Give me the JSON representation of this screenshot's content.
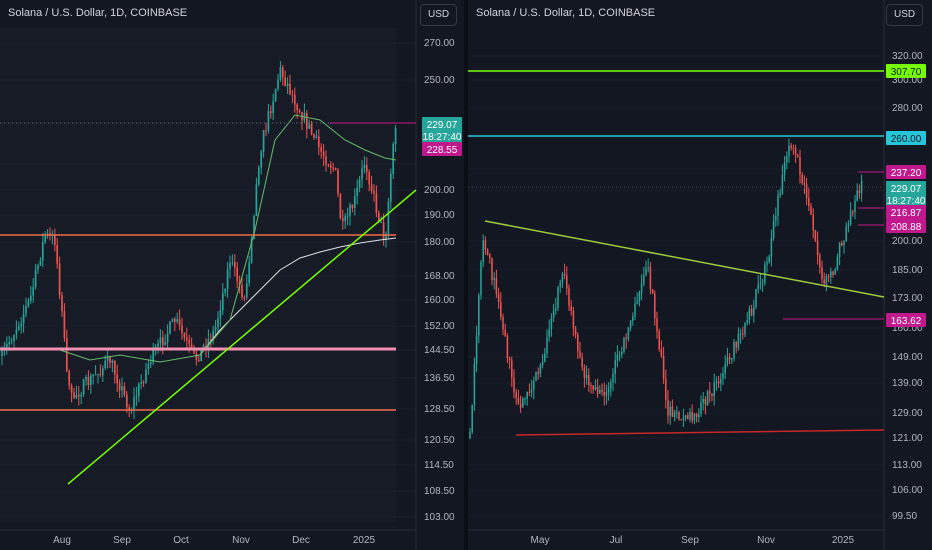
{
  "left": {
    "symbol": "Solana / U.S. Dollar, 1D, COINBASE",
    "currency": "USD",
    "y_ticks": [
      "270.00",
      "250.00",
      "229.07",
      "210.00",
      "200.00",
      "190.00",
      "180.00",
      "168.00",
      "160.00",
      "152.00",
      "144.50",
      "136.50",
      "128.50",
      "120.50",
      "114.50",
      "108.50",
      "103.00"
    ],
    "x_ticks": [
      "Aug",
      "Sep",
      "Oct",
      "Nov",
      "Dec",
      "2025"
    ],
    "labels": [
      {
        "text": "229.07",
        "text2": "18:27:40",
        "color": "#26a69a"
      },
      {
        "text": "228.55",
        "color": "#c2188e"
      }
    ]
  },
  "right": {
    "symbol": "Solana / U.S. Dollar, 1D, COINBASE",
    "currency": "USD",
    "y_ticks": [
      "320.00",
      "300.00",
      "280.00",
      "260.00",
      "240.00",
      "220.00",
      "200.00",
      "185.00",
      "173.00",
      "160.00",
      "149.00",
      "139.00",
      "129.00",
      "121.00",
      "113.00",
      "106.00",
      "99.50"
    ],
    "x_ticks": [
      "May",
      "Jul",
      "Sep",
      "Nov",
      "2025"
    ],
    "labels": [
      {
        "text": "307.70",
        "color": "#76ff03"
      },
      {
        "text": "260.00",
        "color": "#26c6da"
      },
      {
        "text": "237.20",
        "color": "#c2188e"
      },
      {
        "text": "229.07",
        "text2": "18:27:40",
        "color": "#26a69a"
      },
      {
        "text": "216.87",
        "color": "#c2188e"
      },
      {
        "text": "208.88",
        "color": "#c2188e"
      },
      {
        "text": "163.62",
        "color": "#c2188e"
      }
    ]
  },
  "chart_data": [
    {
      "type": "candlestick",
      "title": "Solana / U.S. Dollar, 1D, COINBASE",
      "ylabel": "USD",
      "ylim": [
        103,
        270
      ],
      "x_range": [
        "2024-07",
        "2025-01"
      ],
      "last_price": 229.07,
      "countdown": "18:27:40",
      "price_labels": [
        229.07,
        228.55
      ],
      "close_path": [
        {
          "x": "2024-07",
          "y": 152
        },
        {
          "x": "2024-07-25",
          "y": 183
        },
        {
          "x": "2024-08-05",
          "y": 128
        },
        {
          "x": "2024-08-20",
          "y": 145
        },
        {
          "x": "2024-09-07",
          "y": 128
        },
        {
          "x": "2024-09-25",
          "y": 152
        },
        {
          "x": "2024-10-10",
          "y": 143
        },
        {
          "x": "2024-10-28",
          "y": 175
        },
        {
          "x": "2024-11-22",
          "y": 255
        },
        {
          "x": "2024-12-10",
          "y": 225
        },
        {
          "x": "2024-12-28",
          "y": 188
        },
        {
          "x": "2025-01-06",
          "y": 218
        },
        {
          "x": "2025-01-13",
          "y": 182
        },
        {
          "x": "2025-01-19",
          "y": 229
        }
      ],
      "horizontal_levels": [
        182,
        145,
        128
      ],
      "trendline": [
        {
          "x": "2024-08-05",
          "y": 110
        },
        {
          "x": "2025-01-20",
          "y": 192
        }
      ]
    },
    {
      "type": "candlestick",
      "title": "Solana / U.S. Dollar, 1D, COINBASE",
      "ylabel": "USD",
      "ylim": [
        99.5,
        320
      ],
      "x_range": [
        "2024-03",
        "2025-01"
      ],
      "last_price": 229.07,
      "countdown": "18:27:40",
      "horizontal_levels": [
        307.7,
        260.0
      ],
      "price_labels": [
        307.7,
        260.0,
        237.2,
        229.07,
        216.87,
        208.88,
        163.62
      ],
      "close_path": [
        {
          "x": "2024-03-20",
          "y": 190
        },
        {
          "x": "2024-04-13",
          "y": 123
        },
        {
          "x": "2024-05-20",
          "y": 178
        },
        {
          "x": "2024-06-25",
          "y": 133
        },
        {
          "x": "2024-07-28",
          "y": 190
        },
        {
          "x": "2024-08-05",
          "y": 128
        },
        {
          "x": "2024-09-07",
          "y": 128
        },
        {
          "x": "2024-10-28",
          "y": 175
        },
        {
          "x": "2024-11-22",
          "y": 255
        },
        {
          "x": "2024-12-10",
          "y": 225
        },
        {
          "x": "2025-01-13",
          "y": 182
        },
        {
          "x": "2025-01-19",
          "y": 229
        }
      ],
      "trendline_descending": [
        {
          "x": "2024-03-20",
          "y": 212
        },
        {
          "x": "2025-01-20",
          "y": 173
        }
      ],
      "support_line": [
        {
          "x": "2024-03-20",
          "y": 121
        },
        {
          "x": "2025-01-20",
          "y": 122.5
        }
      ]
    }
  ]
}
